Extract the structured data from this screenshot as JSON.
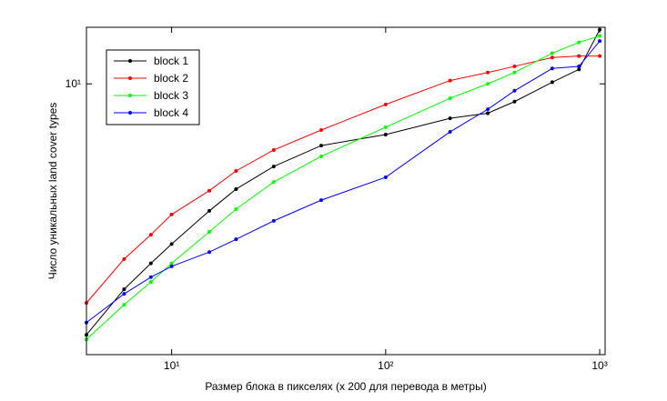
{
  "chart_data": {
    "type": "line",
    "x_label": "Размер блока в пикселях (х 200 для перевода в метры)",
    "y_label": "Число уникальных land cover types",
    "x": [
      4,
      6,
      8,
      10,
      15,
      20,
      30,
      50,
      100,
      200,
      300,
      400,
      600,
      800,
      1000
    ],
    "series": [
      {
        "name": "block 1",
        "color": "#000000",
        "values": [
          2.25,
          2.95,
          3.44,
          3.86,
          4.7,
          5.35,
          6.12,
          6.93,
          7.4,
          8.15,
          8.4,
          9.0,
          10.1,
          10.9,
          13.8
        ]
      },
      {
        "name": "block 2",
        "color": "#ff0000",
        "values": [
          2.72,
          3.53,
          4.08,
          4.6,
          5.3,
          5.96,
          6.75,
          7.6,
          8.85,
          10.2,
          10.7,
          11.1,
          11.7,
          11.8,
          11.8
        ]
      },
      {
        "name": "block 3",
        "color": "#00ff00",
        "values": [
          2.19,
          2.69,
          3.08,
          3.44,
          4.15,
          4.75,
          5.58,
          6.5,
          7.73,
          9.18,
          10.0,
          10.7,
          12.0,
          12.8,
          13.3
        ]
      },
      {
        "name": "block 4",
        "color": "#0000ff",
        "values": [
          2.42,
          2.87,
          3.17,
          3.38,
          3.68,
          3.97,
          4.43,
          5.01,
          5.74,
          7.52,
          8.6,
          9.6,
          10.96,
          11.1,
          12.9
        ]
      }
    ],
    "xlog": true,
    "ylog": true,
    "xlim": [
      4,
      1060
    ],
    "ylim": [
      2,
      14
    ],
    "xticks": [
      {
        "value": 10,
        "label": "10¹"
      },
      {
        "value": 100,
        "label": "10²"
      },
      {
        "value": 1000,
        "label": "10³"
      }
    ],
    "yticks": [
      {
        "value": 10,
        "label": "10¹"
      }
    ],
    "legend": "northwest"
  }
}
